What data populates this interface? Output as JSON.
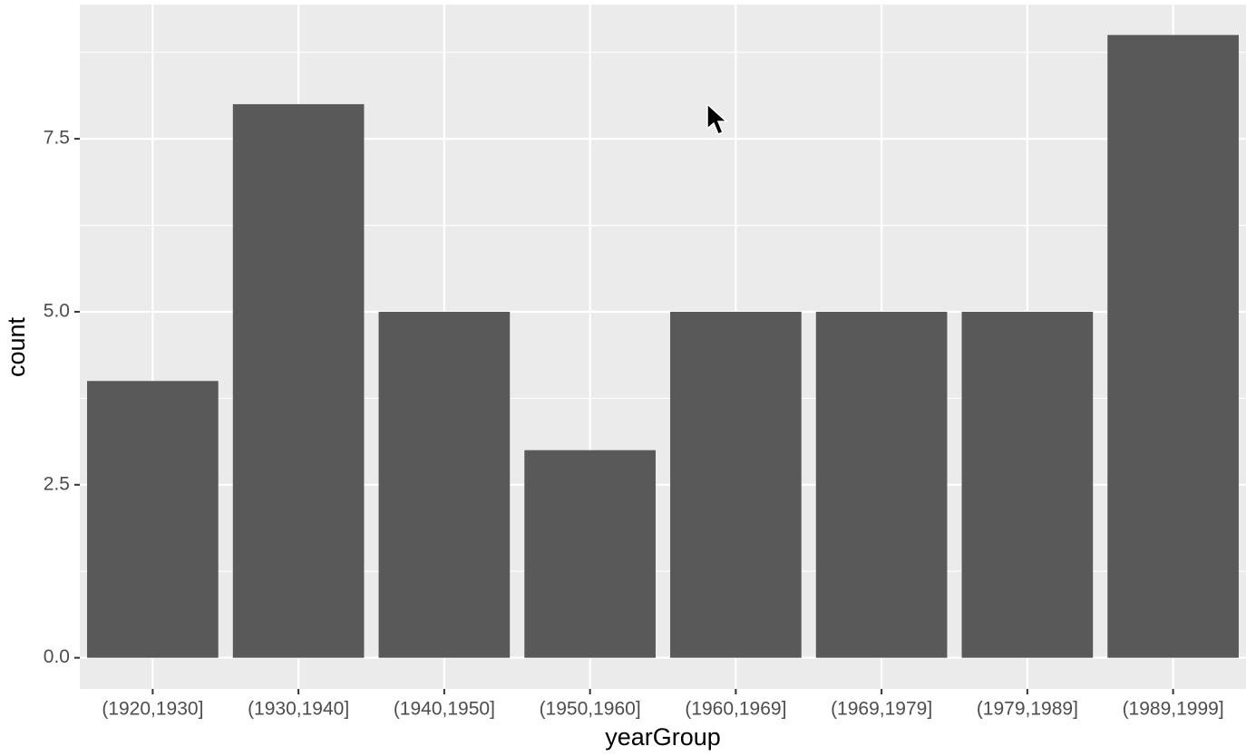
{
  "chart_data": {
    "type": "bar",
    "x_label": "yearGroup",
    "y_label": "count",
    "categories": [
      "(1920,1930]",
      "(1930,1940]",
      "(1940,1950]",
      "(1950,1960]",
      "(1960,1969]",
      "(1969,1979]",
      "(1979,1989]",
      "(1989,1999]"
    ],
    "values": [
      4,
      8,
      5,
      3,
      5,
      5,
      5,
      9
    ],
    "color": "#595959",
    "ylim": [
      -0.45,
      9.44
    ],
    "yticks": [
      {
        "value": 0,
        "label": "0.0"
      },
      {
        "value": 2.5,
        "label": "2.5"
      },
      {
        "value": 5,
        "label": "5.0"
      },
      {
        "value": 7.5,
        "label": "7.5"
      }
    ],
    "grid": true
  }
}
